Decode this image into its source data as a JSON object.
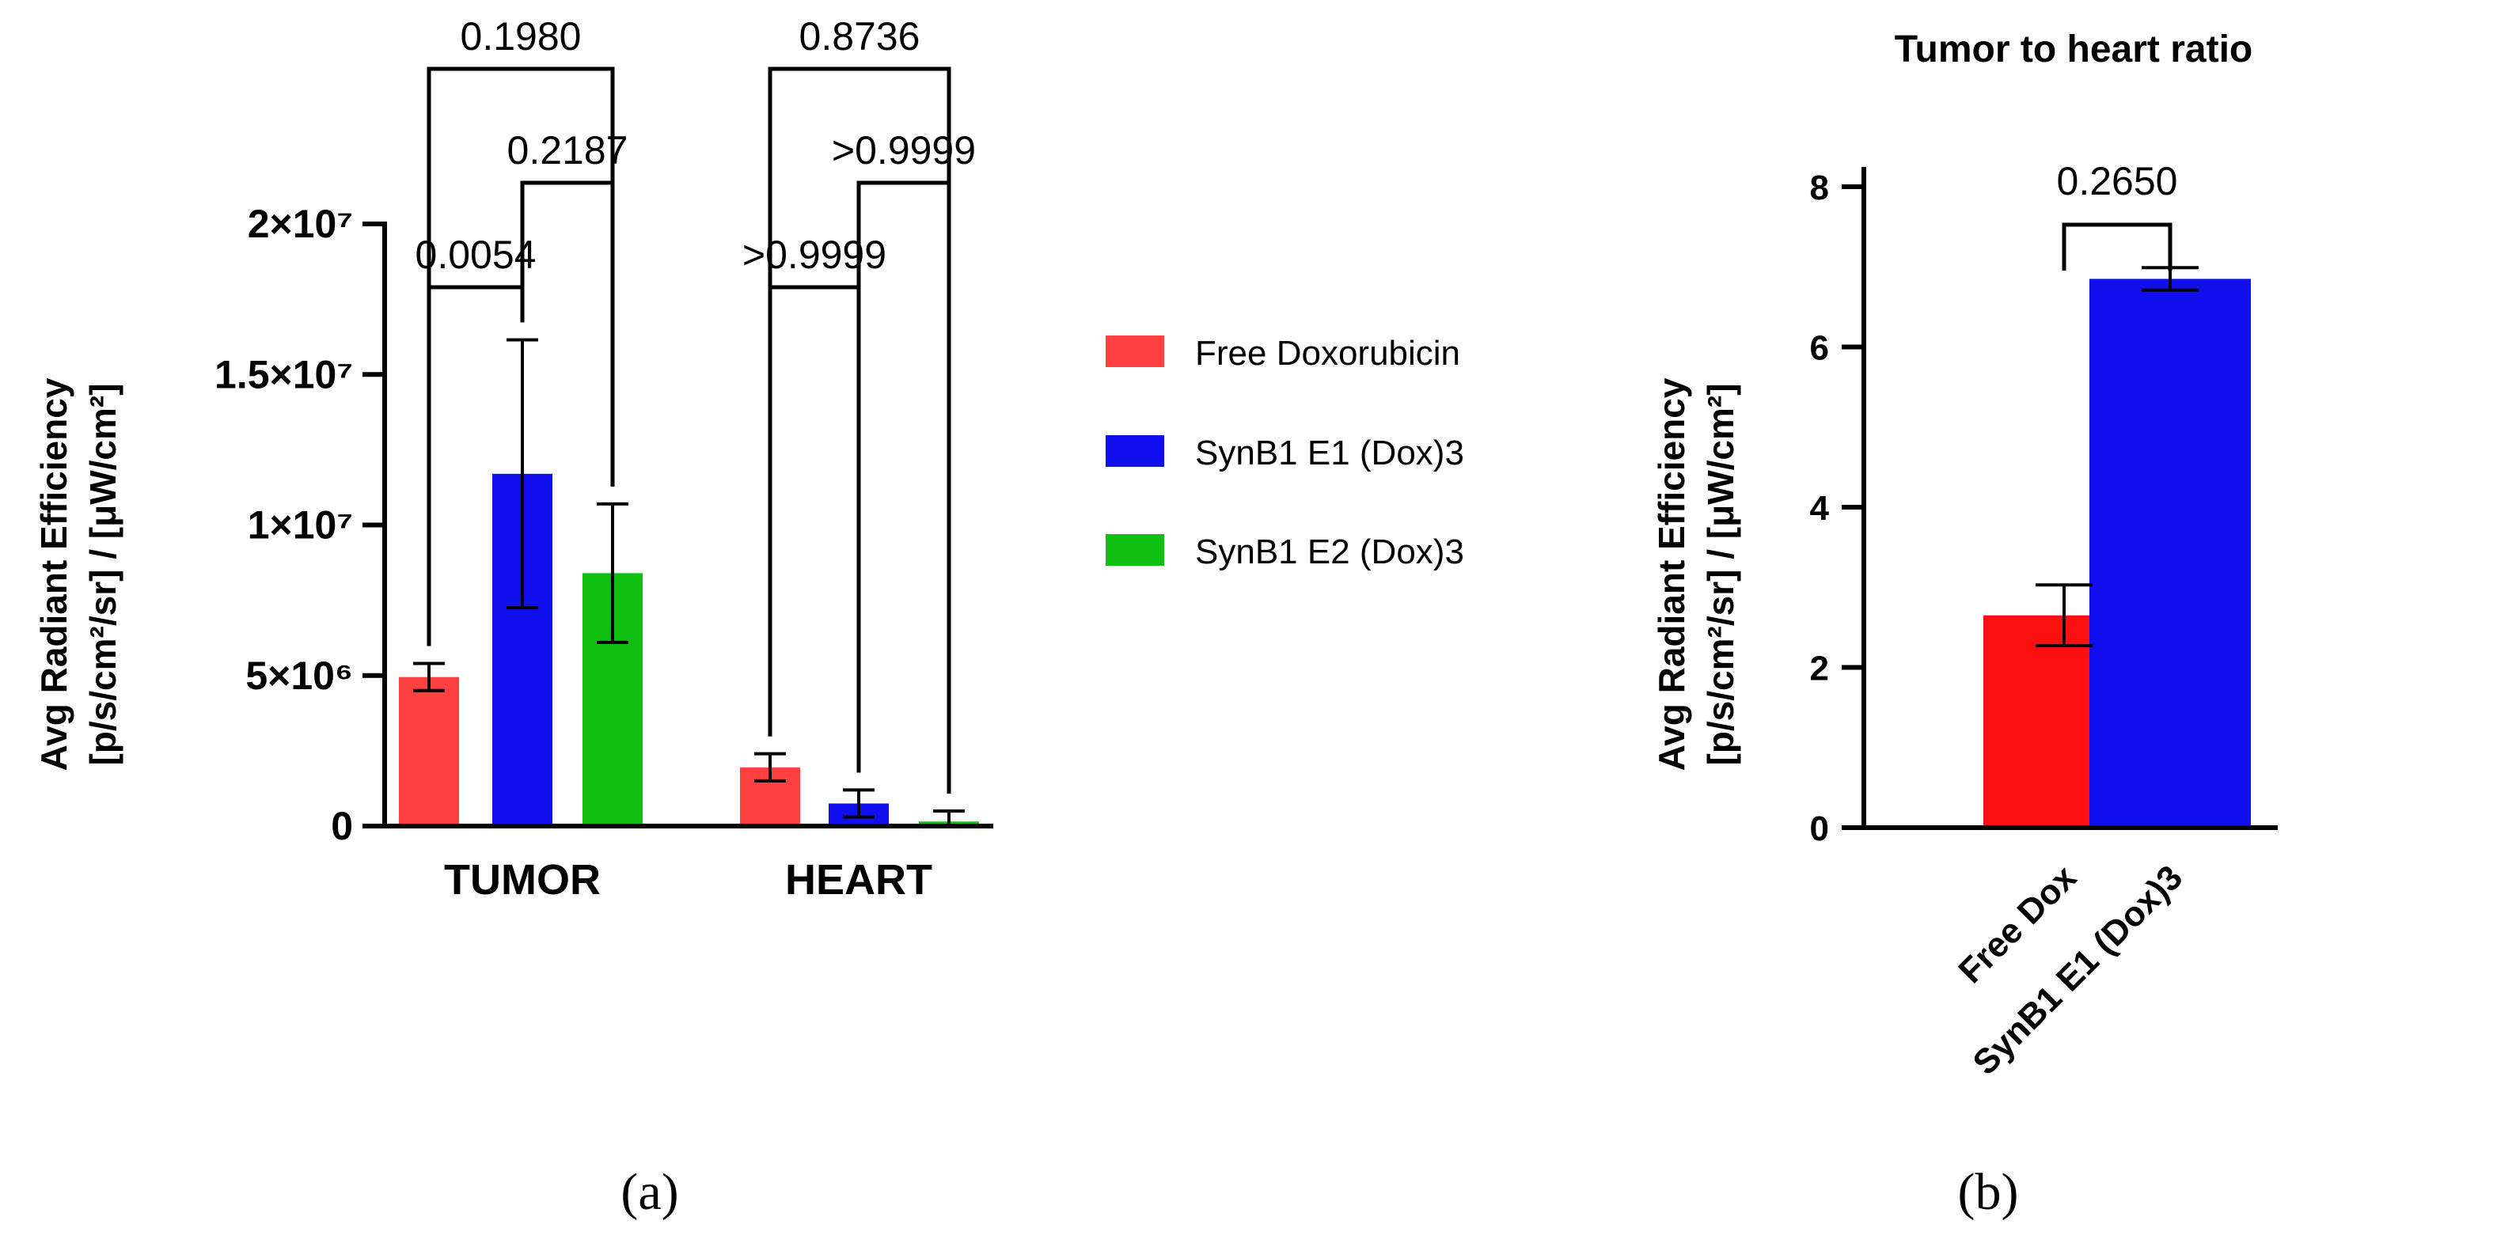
{
  "chart_data": [
    {
      "type": "bar",
      "panel_label": "(a)",
      "categories": [
        "TUMOR",
        "HEART"
      ],
      "ylabel_line1": "Avg Radiant Efficiency",
      "ylabel_line2": "[p/s/cm²/sr] / [μW/cm²]",
      "ylim": [
        0,
        20000000
      ],
      "yticks": [
        {
          "value": 0,
          "label": "0"
        },
        {
          "value": 5000000,
          "label": "5×10⁶"
        },
        {
          "value": 10000000,
          "label": "1×10⁷"
        },
        {
          "value": 15000000,
          "label": "1.5×10⁷"
        },
        {
          "value": 20000000,
          "label": "2×10⁷"
        }
      ],
      "series": [
        {
          "name": "Free Doxorubicin",
          "color": "#ff4040",
          "values": [
            4950000,
            1950000
          ],
          "errors": [
            450000,
            450000
          ]
        },
        {
          "name": "SynB1 E1 (Dox)3",
          "color": "#1010ee",
          "values": [
            11700000,
            750000
          ],
          "errors": [
            4450000,
            450000
          ]
        },
        {
          "name": "SynB1 E2 (Dox)3",
          "color": "#10c010",
          "values": [
            8400000,
            150000
          ],
          "errors": [
            2300000,
            350000
          ]
        }
      ],
      "comparisons": [
        {
          "category": 0,
          "from": 0,
          "to": 1,
          "label": "0.0054",
          "level": 0
        },
        {
          "category": 0,
          "from": 1,
          "to": 2,
          "label": "0.2187",
          "level": 1
        },
        {
          "category": 0,
          "from": 0,
          "to": 2,
          "label": "0.1980",
          "level": 2
        },
        {
          "category": 1,
          "from": 0,
          "to": 1,
          "label": ">0.9999",
          "level": 0
        },
        {
          "category": 1,
          "from": 1,
          "to": 2,
          "label": ">0.9999",
          "level": 1
        },
        {
          "category": 1,
          "from": 0,
          "to": 2,
          "label": "0.8736",
          "level": 2
        }
      ],
      "legend_position": "right"
    },
    {
      "type": "bar",
      "panel_label": "(b)",
      "title": "Tumor to heart ratio",
      "categories": [
        "Free Dox",
        "SynB1 E1 (Dox)3"
      ],
      "colors": [
        "#ff1010",
        "#1010ee"
      ],
      "values": [
        2.65,
        6.85
      ],
      "errors": [
        0.38,
        0.14
      ],
      "ylabel_line1": "Avg Radiant Efficiency",
      "ylabel_line2": "[p/s/cm²/sr] / [μW/cm²]",
      "ylim": [
        0,
        8
      ],
      "yticks": [
        0,
        2,
        4,
        6,
        8
      ],
      "comparison": {
        "from": 0,
        "to": 1,
        "label": "0.2650"
      }
    }
  ]
}
